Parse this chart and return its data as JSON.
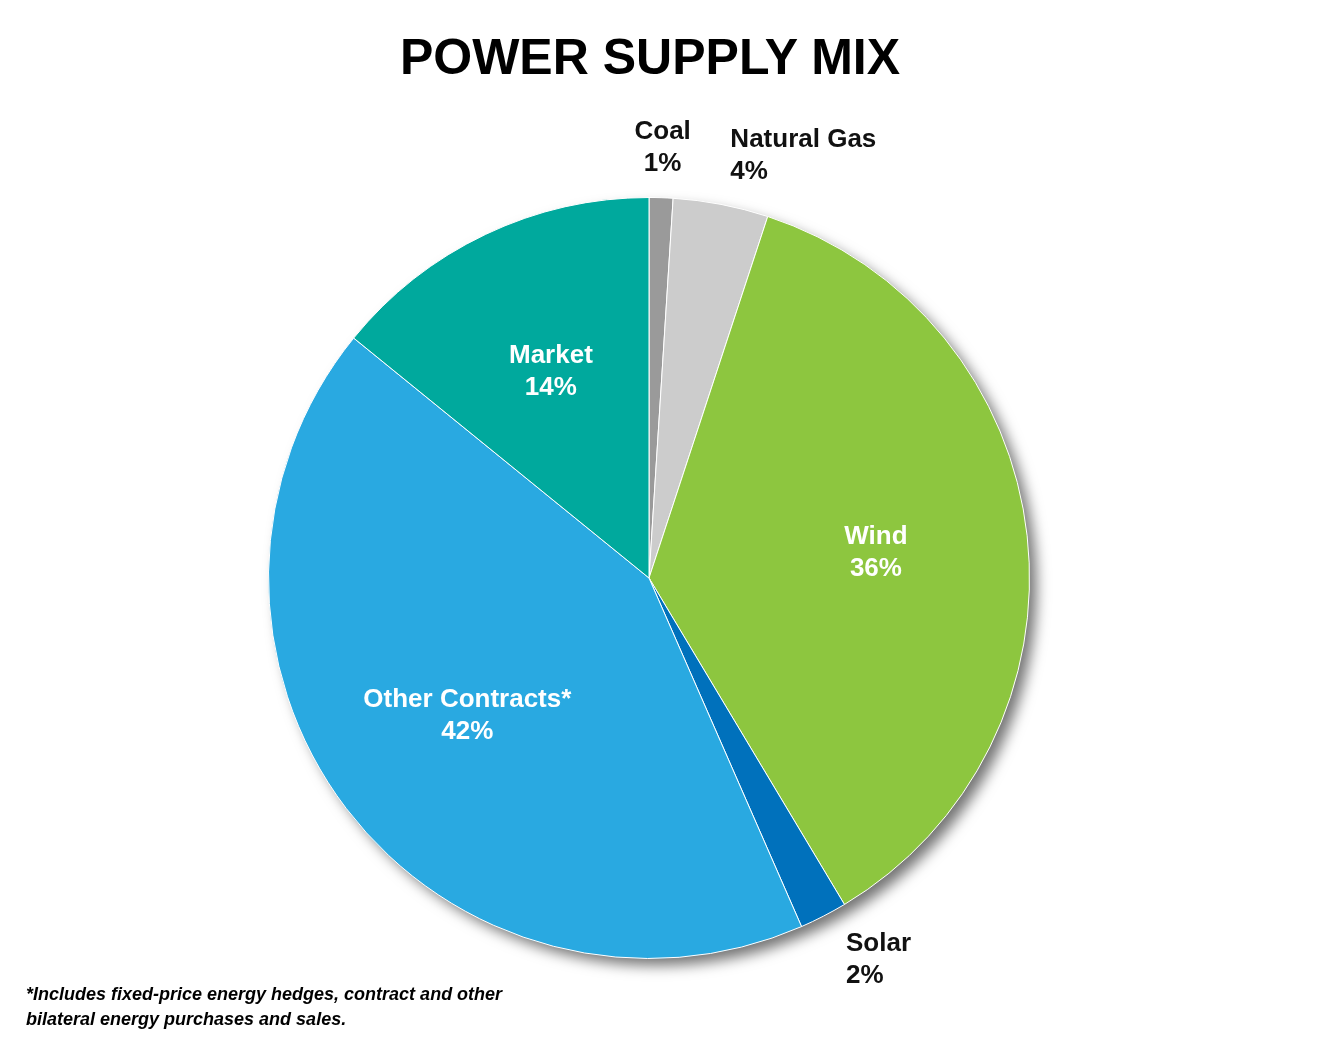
{
  "chart_data": {
    "type": "pie",
    "title": "POWER SUPPLY MIX",
    "categories": [
      "Coal",
      "Natural Gas",
      "Wind",
      "Solar",
      "Other Contracts*",
      "Market"
    ],
    "values": [
      1,
      4,
      36,
      2,
      42,
      14
    ],
    "value_labels": [
      "1%",
      "4%",
      "36%",
      "2%",
      "42%",
      "14%"
    ],
    "colors": [
      "#9a9a9a",
      "#cccccc",
      "#8dc63f",
      "#0071bc",
      "#29a9e1",
      "#00a99d"
    ],
    "legend": false,
    "annotations": [
      "*Includes fixed-price energy hedges, contract and other bilateral energy purchases and sales."
    ]
  }
}
